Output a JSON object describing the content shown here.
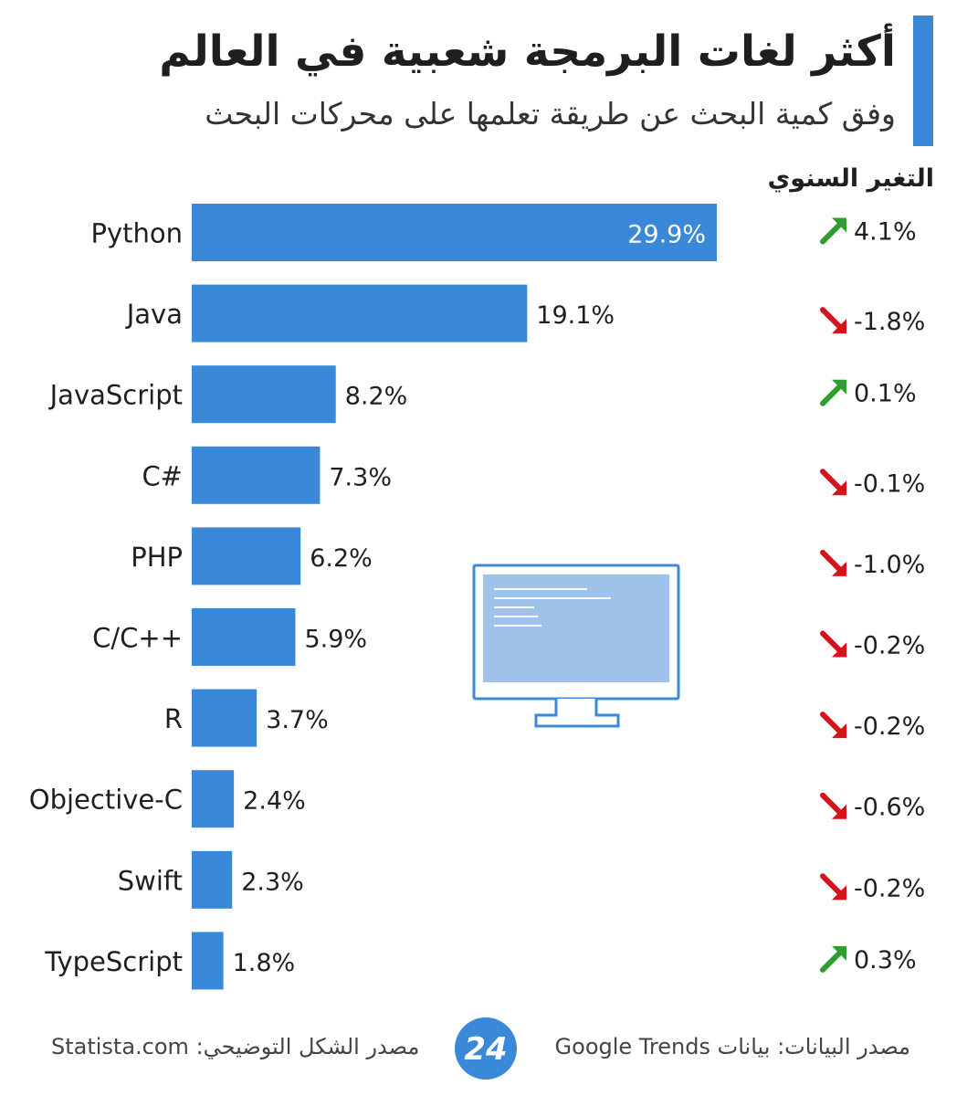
{
  "title": "أكثر لغات البرمجة شعبية في العالم",
  "subtitle": "وفق كمية البحث عن طريقة تعلمها على محركات البحث",
  "change_header": "التغير السنوي",
  "colors": {
    "accent": "#3a88d8",
    "bar": "#3a88d8",
    "up": "#2e9e2e",
    "down": "#d4141c",
    "monitor_screen": "#9fc2ea",
    "monitor_line": "#3a88d8"
  },
  "chart_data": {
    "type": "bar",
    "orientation": "horizontal",
    "categories": [
      "Python",
      "Java",
      "JavaScript",
      "C#",
      "PHP",
      "C/C++",
      "R",
      "Objective-C",
      "Swift",
      "TypeScript"
    ],
    "values": [
      29.9,
      19.1,
      8.2,
      7.3,
      6.2,
      5.9,
      3.7,
      2.4,
      2.3,
      1.8
    ],
    "value_labels": [
      "29.9%",
      "19.1%",
      "8.2%",
      "7.3%",
      "6.2%",
      "5.9%",
      "3.7%",
      "2.4%",
      "2.3%",
      "1.8%"
    ],
    "annual_change": [
      4.1,
      -1.8,
      0.1,
      -0.1,
      -1.0,
      -0.2,
      -0.2,
      -0.6,
      -0.2,
      0.3
    ],
    "annual_change_labels": [
      "4.1%",
      "-1.8%",
      "0.1%",
      "-0.1%",
      "-1.0%",
      "-0.2%",
      "-0.2%",
      "-0.6%",
      "-0.2%",
      "0.3%"
    ],
    "xlim": [
      0,
      30
    ],
    "grid": false,
    "legend": "none"
  },
  "footer": {
    "illustration_source": "مصدر الشكل التوضيحي: Statista.com",
    "data_source": "مصدر البيانات: بيانات Google Trends"
  },
  "logo": {
    "text": "24",
    "icon": "24-logo-icon"
  }
}
